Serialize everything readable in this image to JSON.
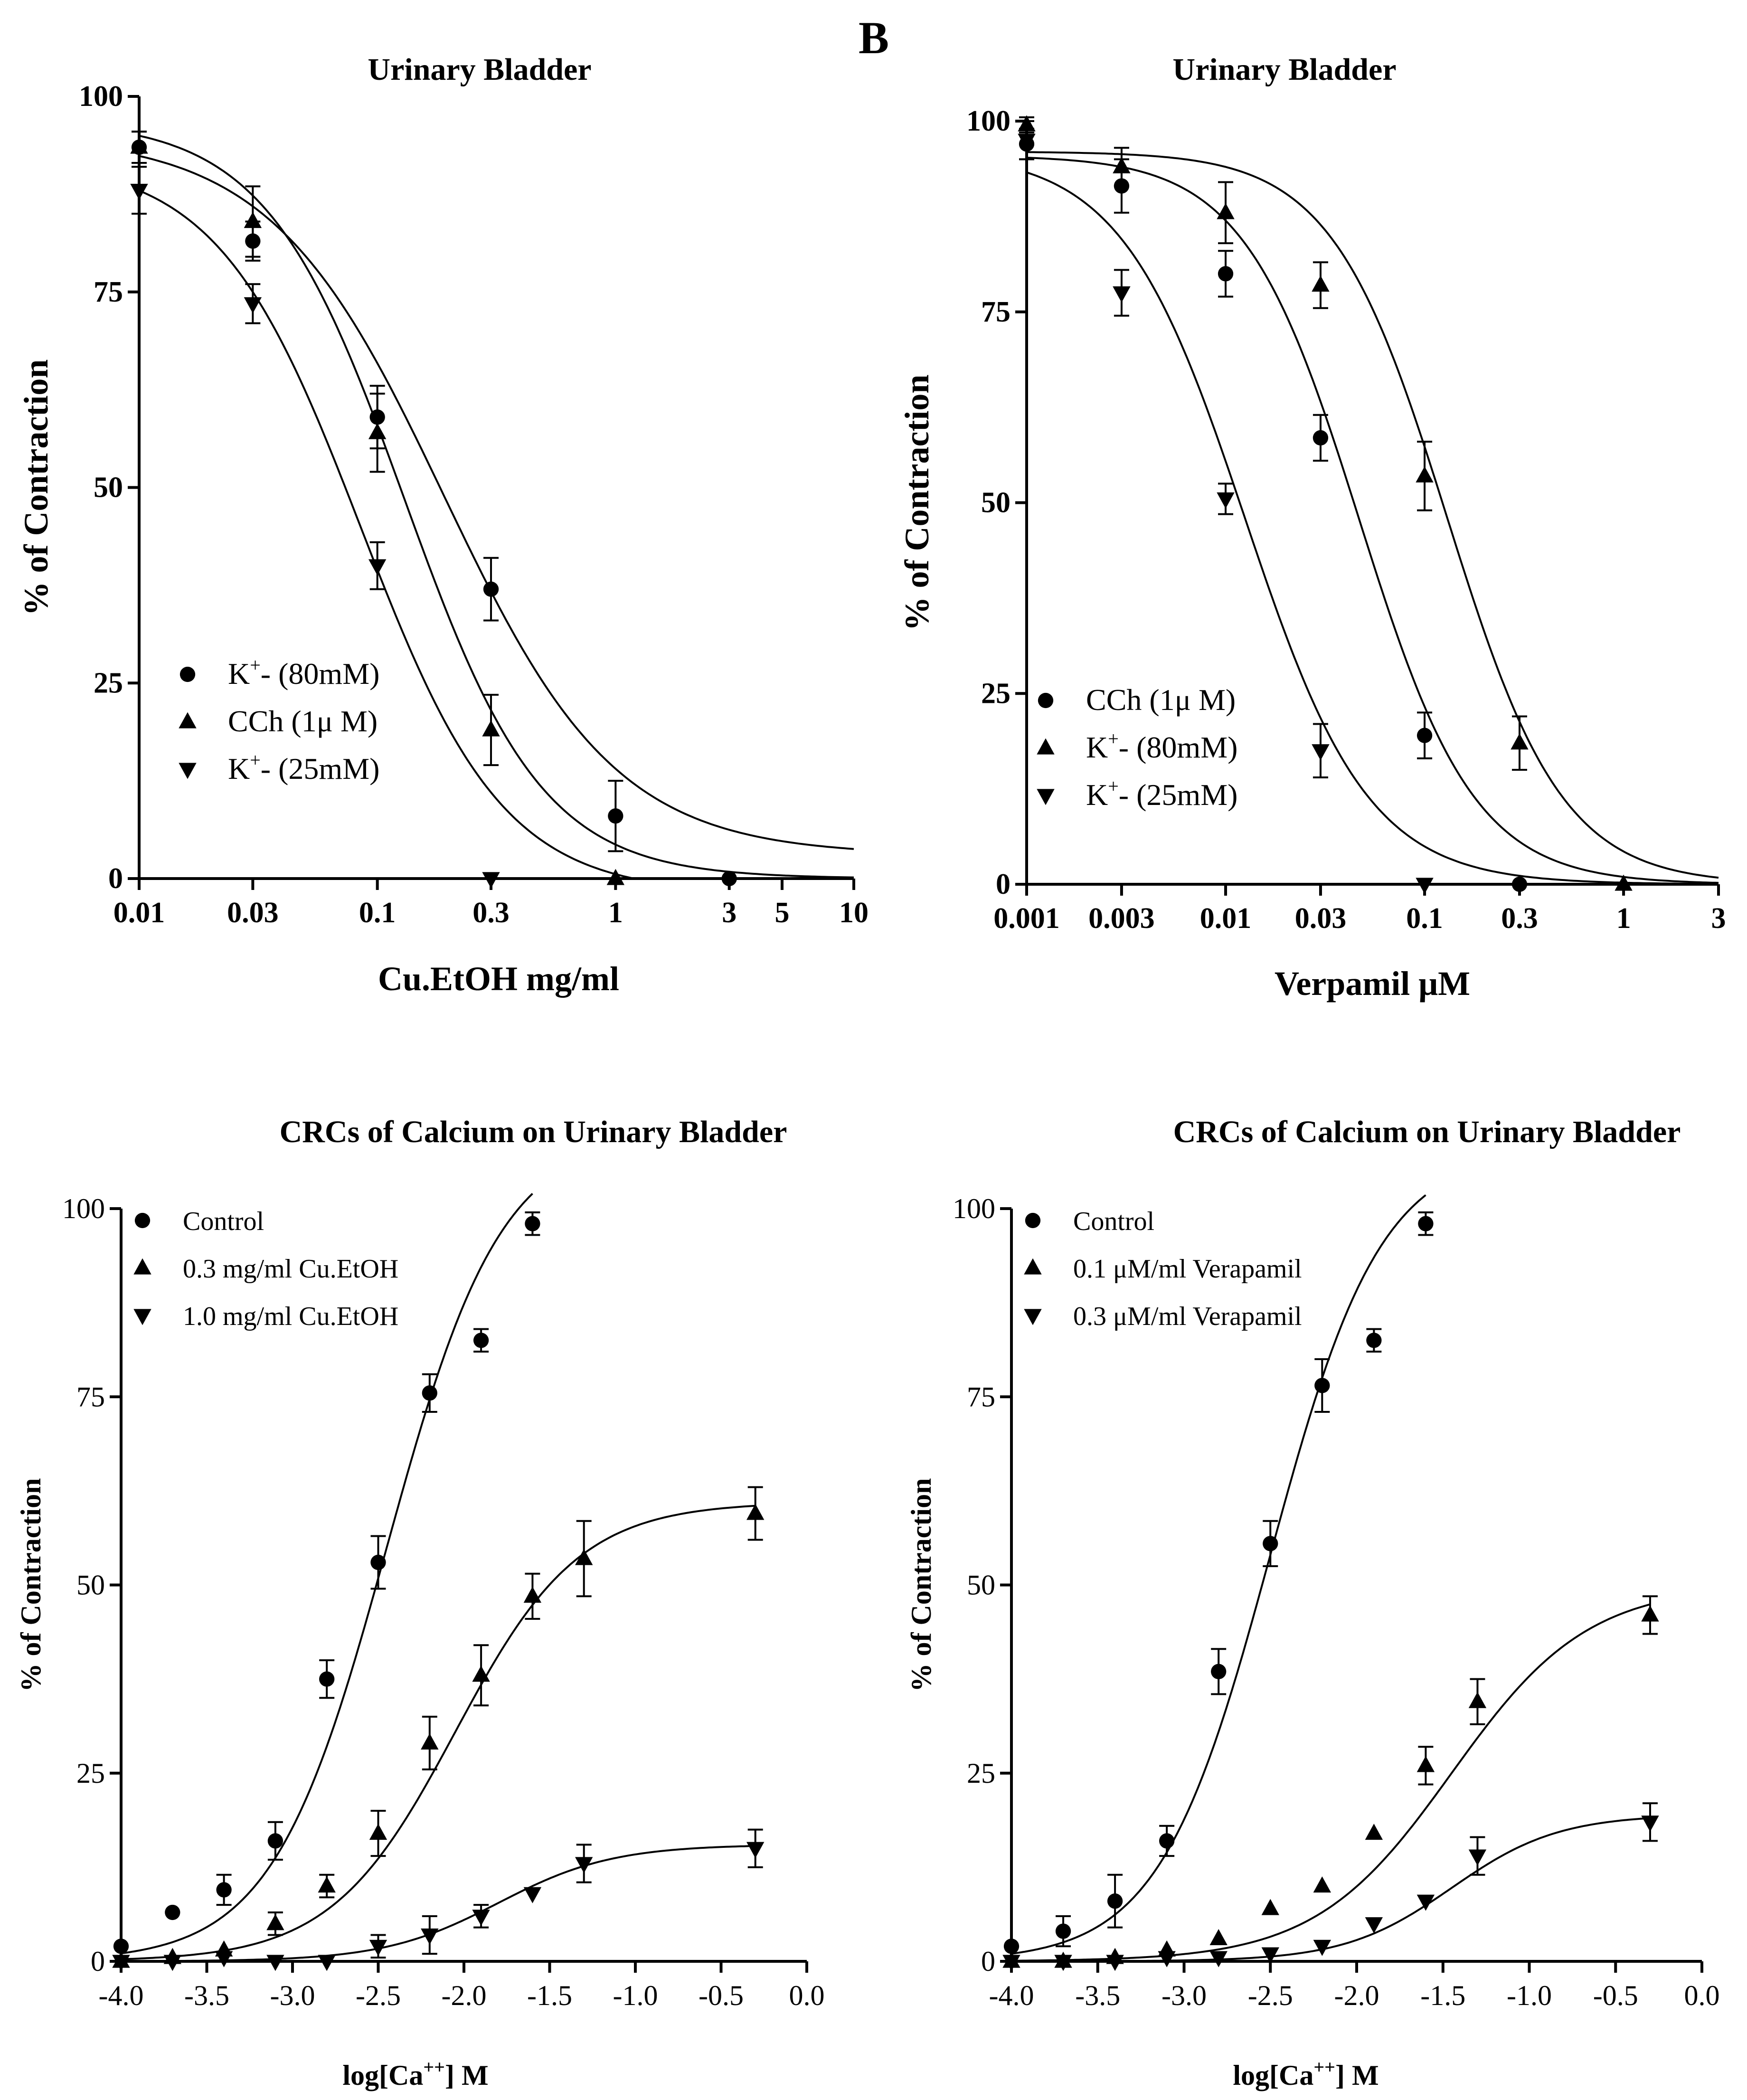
{
  "panel_label": "B",
  "chart_data": [
    {
      "type": "line",
      "title": "Urinary Bladder",
      "xlabel": "Cu.EtOH mg/ml",
      "ylabel": "% of Contraction",
      "xscale": "log",
      "xlim": [
        0.01,
        10
      ],
      "ylim": [
        0,
        100
      ],
      "xticks": [
        0.01,
        0.03,
        0.1,
        0.3,
        1,
        3,
        5,
        10
      ],
      "xtick_labels": [
        "0.01",
        "0.03",
        "0.1",
        "0.3",
        "1",
        "3",
        "5",
        "10"
      ],
      "yticks": [
        0,
        25,
        50,
        75,
        100
      ],
      "ytick_labels": [
        "0",
        "25",
        "50",
        "75",
        "100"
      ],
      "legend_position": "bottom-left",
      "series": [
        {
          "name": "K⁺- (80mM)",
          "label_main": "K",
          "label_sup": "+",
          "label_rest": "- (80mM)",
          "marker": "circle",
          "x": [
            0.01,
            0.03,
            0.1,
            0.3,
            1,
            3
          ],
          "y": [
            93.5,
            81.5,
            59,
            37,
            8,
            0
          ],
          "err": [
            2,
            2.5,
            4,
            4,
            4.5,
            0
          ],
          "fit": {
            "top": 95,
            "bottom": 3,
            "ec50": 0.19,
            "hill": 1.2
          }
        },
        {
          "name": "CCh (1μ M)",
          "label_main": "CCh (1μ M)",
          "marker": "triangle-up",
          "x": [
            0.01,
            0.03,
            0.1,
            0.3,
            1
          ],
          "y": [
            93.5,
            84,
            57,
            19,
            0
          ],
          "err": [
            2,
            4.5,
            5,
            4.5,
            0
          ],
          "fit": {
            "top": 97,
            "bottom": 0,
            "ec50": 0.13,
            "hill": 1.5
          }
        },
        {
          "name": "K⁺- (25mM)",
          "label_main": "K",
          "label_sup": "+",
          "label_rest": "- (25mM)",
          "marker": "triangle-down",
          "x": [
            0.01,
            0.03,
            0.1,
            0.3
          ],
          "y": [
            88,
            73.5,
            40,
            0
          ],
          "err": [
            3,
            2.5,
            3,
            0
          ],
          "fit": {
            "top": 92,
            "bottom": -2,
            "ec50": 0.085,
            "hill": 1.45
          }
        }
      ]
    },
    {
      "type": "line",
      "title": "Urinary Bladder",
      "xlabel": "Verpamil μM",
      "ylabel": "% of Contraction",
      "xscale": "log",
      "xlim": [
        0.001,
        3
      ],
      "ylim": [
        0,
        100
      ],
      "xticks": [
        0.001,
        0.003,
        0.01,
        0.03,
        0.1,
        0.3,
        1,
        3
      ],
      "xtick_labels": [
        "0.001",
        "0.003",
        "0.01",
        "0.03",
        "0.1",
        "0.3",
        "1",
        "3"
      ],
      "yticks": [
        0,
        25,
        50,
        75,
        100
      ],
      "ytick_labels": [
        "0",
        "25",
        "50",
        "75",
        "100"
      ],
      "legend_position": "bottom-left",
      "series": [
        {
          "name": "CCh (1μ M)",
          "label_main": "CCh (1μ M)",
          "marker": "circle",
          "x": [
            0.001,
            0.003,
            0.01,
            0.03,
            0.1,
            0.3
          ],
          "y": [
            97,
            91.5,
            80,
            58.5,
            19.5,
            0
          ],
          "err": [
            2,
            3.5,
            3,
            3,
            3,
            0
          ],
          "fit": {
            "top": 95.5,
            "bottom": 0,
            "ec50": 0.047,
            "hill": 1.5
          }
        },
        {
          "name": "K⁺- (80mM)",
          "label_main": "K",
          "label_sup": "+",
          "label_rest": "- (80mM)",
          "marker": "triangle-up",
          "x": [
            0.001,
            0.003,
            0.01,
            0.03,
            0.1,
            0.3,
            1
          ],
          "y": [
            99.5,
            94,
            88,
            78.5,
            53.5,
            18.5,
            0
          ],
          "err": [
            1,
            2.5,
            4,
            3,
            4.5,
            3.5,
            0
          ],
          "fit": {
            "top": 96,
            "bottom": 0,
            "ec50": 0.13,
            "hill": 1.5
          }
        },
        {
          "name": "K⁺- (25mM)",
          "label_main": "K",
          "label_sup": "+",
          "label_rest": "- (25mM)",
          "marker": "triangle-down",
          "x": [
            0.001,
            0.003,
            0.01,
            0.03,
            0.1
          ],
          "y": [
            97.5,
            77.5,
            50.5,
            17.5,
            0
          ],
          "err": [
            2.5,
            3,
            2,
            3.5,
            0
          ],
          "fit": {
            "top": 96,
            "bottom": 0,
            "ec50": 0.0125,
            "hill": 1.4
          }
        }
      ]
    },
    {
      "type": "line",
      "title": "CRCs of Calcium on Urinary Bladder",
      "xlabel_main": "log[Ca",
      "xlabel_sup": "++",
      "xlabel_rest": "] M",
      "ylabel": "% of Contraction",
      "xscale": "linear",
      "xlim": [
        -4.0,
        0.0
      ],
      "ylim": [
        0,
        100
      ],
      "xticks": [
        -4.0,
        -3.5,
        -3.0,
        -2.5,
        -2.0,
        -1.5,
        -1.0,
        -0.5,
        0.0
      ],
      "xtick_labels": [
        "-4.0",
        "-3.5",
        "-3.0",
        "-2.5",
        "-2.0",
        "-1.5",
        "-1.0",
        "-0.5",
        "0.0"
      ],
      "yticks": [
        0,
        25,
        50,
        75,
        100
      ],
      "ytick_labels": [
        "0",
        "25",
        "50",
        "75",
        "100"
      ],
      "legend_position": "top-left",
      "series": [
        {
          "name": "Control",
          "label_main": "Control",
          "marker": "circle",
          "x": [
            -4.0,
            -3.7,
            -3.4,
            -3.1,
            -2.8,
            -2.5,
            -2.2,
            -1.9,
            -1.6
          ],
          "y": [
            2,
            6.5,
            9.5,
            16,
            37.5,
            53,
            75.5,
            82.5,
            98
          ],
          "err": [
            0,
            0,
            2,
            2.5,
            2.5,
            3.5,
            2.5,
            1.5,
            1.5
          ],
          "fit": {
            "bottom": 0,
            "top": 110,
            "ec50": -2.45,
            "hill": 1.3,
            "xmin": -4.0,
            "xmax": -1.6
          }
        },
        {
          "name": "0.3 mg/ml Cu.EtOH",
          "label_main": "0.3 mg/ml Cu.EtOH",
          "marker": "triangle-up",
          "x": [
            -4.0,
            -3.7,
            -3.4,
            -3.1,
            -2.8,
            -2.5,
            -2.2,
            -1.9,
            -1.6,
            -1.3,
            -0.3
          ],
          "y": [
            0,
            0.5,
            1.5,
            5,
            10,
            17,
            29,
            38,
            48.5,
            53.5,
            59.5
          ],
          "err": [
            0,
            0,
            0,
            1.5,
            1.5,
            3,
            3.5,
            4,
            3,
            5,
            3.5
          ],
          "fit": {
            "bottom": 0,
            "top": 61,
            "ec50": -2.05,
            "hill": 1.2,
            "xmin": -4.0,
            "xmax": -0.3
          }
        },
        {
          "name": "1.0 mg/ml Cu.EtOH",
          "label_main": "1.0 mg/ml Cu.EtOH",
          "marker": "triangle-down",
          "x": [
            -4.0,
            -3.7,
            -3.4,
            -3.1,
            -2.8,
            -2.5,
            -2.2,
            -1.9,
            -1.6,
            -1.3,
            -0.3
          ],
          "y": [
            0,
            0,
            0.5,
            0,
            0,
            2,
            3.5,
            6,
            9,
            13,
            15
          ],
          "err": [
            0,
            0,
            0,
            0,
            0,
            1.5,
            2.5,
            1.5,
            0,
            2.5,
            2.5
          ],
          "fit": {
            "bottom": 0,
            "top": 15.5,
            "ec50": -1.8,
            "hill": 1.3,
            "xmin": -4.0,
            "xmax": -0.3
          }
        }
      ]
    },
    {
      "type": "line",
      "title": "CRCs of Calcium on Urinary Bladder",
      "xlabel_main": "log[Ca",
      "xlabel_sup": "++",
      "xlabel_rest": "] M",
      "ylabel": "% of Contraction",
      "xscale": "linear",
      "xlim": [
        -4.0,
        0.0
      ],
      "ylim": [
        0,
        100
      ],
      "xticks": [
        -4.0,
        -3.5,
        -3.0,
        -2.5,
        -2.0,
        -1.5,
        -1.0,
        -0.5,
        0.0
      ],
      "xtick_labels": [
        "-4.0",
        "-3.5",
        "-3.0",
        "-2.5",
        "-2.0",
        "-1.5",
        "-1.0",
        "-0.5",
        "0.0"
      ],
      "yticks": [
        0,
        25,
        50,
        75,
        100
      ],
      "ytick_labels": [
        "0",
        "25",
        "50",
        "75",
        "100"
      ],
      "legend_position": "top-left",
      "series": [
        {
          "name": "Control",
          "label_main": "Control",
          "marker": "circle",
          "x": [
            -4.0,
            -3.7,
            -3.4,
            -3.1,
            -2.8,
            -2.5,
            -2.2,
            -1.9,
            -1.6
          ],
          "y": [
            2,
            4,
            8,
            16,
            38.5,
            55.5,
            76.5,
            82.5,
            98
          ],
          "err": [
            0,
            2,
            3.5,
            2,
            3,
            3,
            3.5,
            1.5,
            1.5
          ],
          "fit": {
            "bottom": 0,
            "top": 108,
            "ec50": -2.5,
            "hill": 1.35,
            "xmin": -4.0,
            "xmax": -1.6
          }
        },
        {
          "name": "0.1 μM/ml Verapamil",
          "label_main": "0.1 μM/ml Verapamil",
          "marker": "triangle-up",
          "x": [
            -4.0,
            -3.7,
            -3.4,
            -3.1,
            -2.8,
            -2.5,
            -2.2,
            -1.9,
            -1.6,
            -1.3,
            -0.3
          ],
          "y": [
            0,
            0,
            0.5,
            1.5,
            3,
            7,
            10,
            17,
            26,
            34.5,
            46
          ],
          "err": [
            0,
            0,
            0,
            0,
            0,
            0,
            0,
            0,
            2.5,
            3,
            2.5
          ],
          "fit": {
            "bottom": 0,
            "top": 50,
            "ec50": -1.45,
            "hill": 1.1,
            "xmin": -4.0,
            "xmax": -0.3
          }
        },
        {
          "name": "0.3 μM/ml Verapamil",
          "label_main": "0.3 μM/ml Verapamil",
          "marker": "triangle-down",
          "x": [
            -4.0,
            -3.7,
            -3.4,
            -3.1,
            -2.8,
            -2.5,
            -2.2,
            -1.9,
            -1.6,
            -1.3,
            -0.3
          ],
          "y": [
            0,
            0,
            0,
            0.5,
            0.5,
            1,
            2,
            5,
            8,
            14,
            18.5
          ],
          "err": [
            0,
            0,
            0,
            0,
            0,
            0,
            0,
            0,
            0,
            2.5,
            2.5
          ],
          "fit": {
            "bottom": 0,
            "top": 19.5,
            "ec50": -1.45,
            "hill": 1.4,
            "xmin": -4.0,
            "xmax": -0.3
          }
        }
      ]
    }
  ]
}
